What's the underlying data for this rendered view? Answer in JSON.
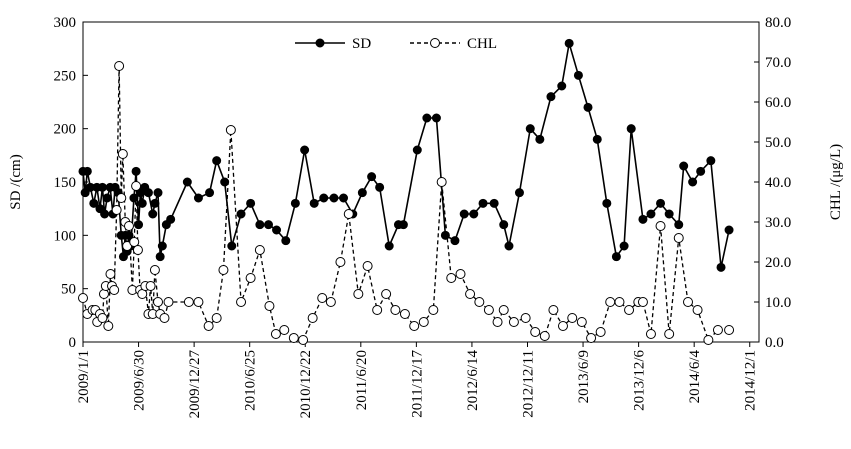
{
  "chart_data": {
    "type": "line",
    "yaxis_left": {
      "label": "SD /(cm)",
      "min": 0,
      "max": 300,
      "ticks": [
        "0",
        "50",
        "100",
        "150",
        "200",
        "250",
        "300"
      ]
    },
    "yaxis_right": {
      "label": "CHL /(μg/L)",
      "min": 0,
      "max": 80,
      "ticks": [
        "0.0",
        "10.0",
        "20.0",
        "30.0",
        "40.0",
        "50.0",
        "60.0",
        "70.0",
        "80.0"
      ]
    },
    "xaxis": {
      "min": "2009-01-01",
      "max": "2014-12-31"
    },
    "x_ticks": [
      "2009/1/1",
      "2009/6/30",
      "2009/12/27",
      "2010/6/25",
      "2010/12/22",
      "2011/6/20",
      "2011/12/17",
      "2012/6/14",
      "2012/12/11",
      "2013/6/9",
      "2013/12/6",
      "2014/6/4",
      "2014/12/1"
    ],
    "legend": {
      "placement": "top-center"
    },
    "series": [
      {
        "name": "SD",
        "axis": "left",
        "style": "solid-filled-markers",
        "points": [
          [
            "2009-01-01",
            160
          ],
          [
            "2009-01-08",
            140
          ],
          [
            "2009-01-15",
            160
          ],
          [
            "2009-01-25",
            145
          ],
          [
            "2009-02-05",
            130
          ],
          [
            "2009-02-15",
            145
          ],
          [
            "2009-02-25",
            125
          ],
          [
            "2009-03-05",
            145
          ],
          [
            "2009-03-12",
            120
          ],
          [
            "2009-03-20",
            135
          ],
          [
            "2009-03-30",
            145
          ],
          [
            "2009-04-08",
            120
          ],
          [
            "2009-04-15",
            145
          ],
          [
            "2009-04-25",
            140
          ],
          [
            "2009-05-05",
            100
          ],
          [
            "2009-05-12",
            80
          ],
          [
            "2009-05-18",
            100
          ],
          [
            "2009-05-24",
            85
          ],
          [
            "2009-05-30",
            100
          ],
          [
            "2009-06-05",
            90
          ],
          [
            "2009-06-15",
            135
          ],
          [
            "2009-06-22",
            160
          ],
          [
            "2009-06-30",
            110
          ],
          [
            "2009-07-06",
            140
          ],
          [
            "2009-07-12",
            130
          ],
          [
            "2009-07-20",
            145
          ],
          [
            "2009-08-01",
            140
          ],
          [
            "2009-08-15",
            120
          ],
          [
            "2009-08-22",
            130
          ],
          [
            "2009-09-01",
            140
          ],
          [
            "2009-09-08",
            80
          ],
          [
            "2009-09-15",
            90
          ],
          [
            "2009-09-28",
            110
          ],
          [
            "2009-10-12",
            115
          ],
          [
            "2009-12-05",
            150
          ],
          [
            "2010-01-10",
            135
          ],
          [
            "2010-02-15",
            140
          ],
          [
            "2010-03-10",
            170
          ],
          [
            "2010-04-05",
            150
          ],
          [
            "2010-04-28",
            90
          ],
          [
            "2010-05-28",
            120
          ],
          [
            "2010-06-28",
            130
          ],
          [
            "2010-07-28",
            110
          ],
          [
            "2010-08-25",
            110
          ],
          [
            "2010-09-20",
            105
          ],
          [
            "2010-10-20",
            95
          ],
          [
            "2010-11-20",
            130
          ],
          [
            "2010-12-20",
            180
          ],
          [
            "2011-01-20",
            130
          ],
          [
            "2011-02-20",
            135
          ],
          [
            "2011-03-25",
            135
          ],
          [
            "2011-04-25",
            135
          ],
          [
            "2011-05-25",
            120
          ],
          [
            "2011-06-25",
            140
          ],
          [
            "2011-07-25",
            155
          ],
          [
            "2011-08-20",
            145
          ],
          [
            "2011-09-20",
            90
          ],
          [
            "2011-10-20",
            110
          ],
          [
            "2011-11-05",
            110
          ],
          [
            "2011-12-20",
            180
          ],
          [
            "2012-01-20",
            210
          ],
          [
            "2012-02-20",
            210
          ],
          [
            "2012-03-20",
            100
          ],
          [
            "2012-04-20",
            95
          ],
          [
            "2012-05-20",
            120
          ],
          [
            "2012-06-20",
            120
          ],
          [
            "2012-07-20",
            130
          ],
          [
            "2012-08-25",
            130
          ],
          [
            "2012-09-25",
            110
          ],
          [
            "2012-10-12",
            90
          ],
          [
            "2012-11-15",
            140
          ],
          [
            "2012-12-20",
            200
          ],
          [
            "2013-01-20",
            190
          ],
          [
            "2013-02-25",
            230
          ],
          [
            "2013-04-01",
            240
          ],
          [
            "2013-04-25",
            280
          ],
          [
            "2013-05-25",
            250
          ],
          [
            "2013-06-25",
            220
          ],
          [
            "2013-07-25",
            190
          ],
          [
            "2013-08-25",
            130
          ],
          [
            "2013-09-25",
            80
          ],
          [
            "2013-10-20",
            90
          ],
          [
            "2013-11-12",
            200
          ],
          [
            "2013-12-20",
            115
          ],
          [
            "2014-01-15",
            120
          ],
          [
            "2014-02-15",
            130
          ],
          [
            "2014-03-15",
            120
          ],
          [
            "2014-04-15",
            110
          ],
          [
            "2014-05-01",
            165
          ],
          [
            "2014-05-30",
            150
          ],
          [
            "2014-06-25",
            160
          ],
          [
            "2014-07-28",
            170
          ],
          [
            "2014-08-30",
            70
          ],
          [
            "2014-09-25",
            105
          ]
        ]
      },
      {
        "name": "CHL",
        "axis": "right",
        "style": "dashed-open-markers",
        "points": [
          [
            "2009-01-01",
            11
          ],
          [
            "2009-01-15",
            7
          ],
          [
            "2009-02-01",
            8
          ],
          [
            "2009-02-10",
            8
          ],
          [
            "2009-02-16",
            5
          ],
          [
            "2009-02-25",
            7
          ],
          [
            "2009-03-05",
            6
          ],
          [
            "2009-03-10",
            12
          ],
          [
            "2009-03-16",
            14
          ],
          [
            "2009-03-24",
            4
          ],
          [
            "2009-03-31",
            17
          ],
          [
            "2009-04-05",
            14
          ],
          [
            "2009-04-12",
            13
          ],
          [
            "2009-04-20",
            33
          ],
          [
            "2009-04-28",
            69
          ],
          [
            "2009-05-05",
            36
          ],
          [
            "2009-05-10",
            47
          ],
          [
            "2009-05-18",
            30
          ],
          [
            "2009-05-24",
            24
          ],
          [
            "2009-05-30",
            29
          ],
          [
            "2009-06-10",
            13
          ],
          [
            "2009-06-16",
            25
          ],
          [
            "2009-06-22",
            39
          ],
          [
            "2009-06-28",
            23
          ],
          [
            "2009-07-05",
            13
          ],
          [
            "2009-07-12",
            12
          ],
          [
            "2009-07-22",
            14
          ],
          [
            "2009-08-01",
            7
          ],
          [
            "2009-08-08",
            14
          ],
          [
            "2009-08-15",
            7
          ],
          [
            "2009-08-22",
            18
          ],
          [
            "2009-09-01",
            10
          ],
          [
            "2009-09-08",
            7
          ],
          [
            "2009-09-22",
            6
          ],
          [
            "2009-10-05",
            10
          ],
          [
            "2009-12-10",
            10
          ],
          [
            "2010-01-10",
            10
          ],
          [
            "2010-02-12",
            4
          ],
          [
            "2010-03-10",
            6
          ],
          [
            "2010-04-01",
            18
          ],
          [
            "2010-04-25",
            53
          ],
          [
            "2010-05-28",
            10
          ],
          [
            "2010-06-28",
            16
          ],
          [
            "2010-07-28",
            23
          ],
          [
            "2010-08-28",
            9
          ],
          [
            "2010-09-18",
            2
          ],
          [
            "2010-10-15",
            3
          ],
          [
            "2010-11-15",
            1
          ],
          [
            "2010-12-15",
            0.5
          ],
          [
            "2011-01-15",
            6
          ],
          [
            "2011-02-15",
            11
          ],
          [
            "2011-03-15",
            10
          ],
          [
            "2011-04-15",
            20
          ],
          [
            "2011-05-12",
            32
          ],
          [
            "2011-06-12",
            12
          ],
          [
            "2011-07-12",
            19
          ],
          [
            "2011-08-12",
            8
          ],
          [
            "2011-09-10",
            12
          ],
          [
            "2011-10-10",
            8
          ],
          [
            "2011-11-10",
            7
          ],
          [
            "2011-12-10",
            4
          ],
          [
            "2012-01-10",
            5
          ],
          [
            "2012-02-10",
            8
          ],
          [
            "2012-03-08",
            40
          ],
          [
            "2012-04-08",
            16
          ],
          [
            "2012-05-08",
            17
          ],
          [
            "2012-06-08",
            12
          ],
          [
            "2012-07-08",
            10
          ],
          [
            "2012-08-08",
            8
          ],
          [
            "2012-09-05",
            5
          ],
          [
            "2012-09-25",
            8
          ],
          [
            "2012-10-28",
            5
          ],
          [
            "2012-12-05",
            6
          ],
          [
            "2013-01-05",
            2.5
          ],
          [
            "2013-02-05",
            1.5
          ],
          [
            "2013-03-05",
            8
          ],
          [
            "2013-04-05",
            4
          ],
          [
            "2013-05-05",
            6
          ],
          [
            "2013-06-05",
            5
          ],
          [
            "2013-07-05",
            1
          ],
          [
            "2013-08-05",
            2.5
          ],
          [
            "2013-09-05",
            10
          ],
          [
            "2013-10-05",
            10
          ],
          [
            "2013-11-05",
            8
          ],
          [
            "2013-12-05",
            10
          ],
          [
            "2013-12-20",
            10
          ],
          [
            "2014-01-15",
            2
          ],
          [
            "2014-02-15",
            29
          ],
          [
            "2014-03-15",
            2
          ],
          [
            "2014-04-15",
            26
          ],
          [
            "2014-05-15",
            10
          ],
          [
            "2014-06-15",
            8
          ],
          [
            "2014-07-20",
            0.5
          ],
          [
            "2014-08-20",
            3
          ],
          [
            "2014-09-25",
            3
          ]
        ]
      }
    ]
  }
}
